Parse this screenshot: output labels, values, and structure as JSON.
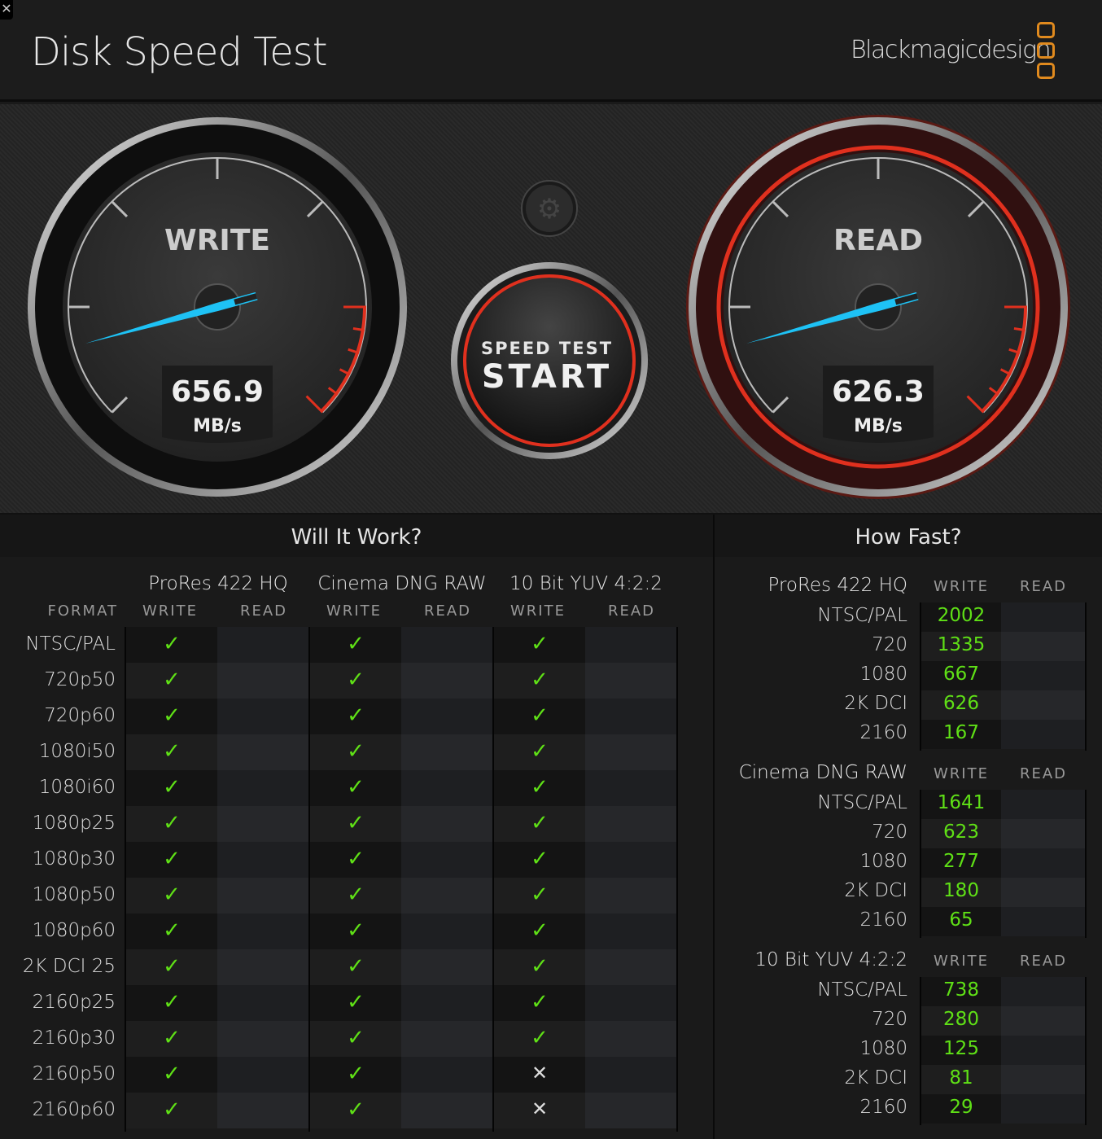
{
  "app": {
    "title": "Disk Speed Test",
    "brand": "Blackmagicdesign",
    "close_icon": "close-icon"
  },
  "colors": {
    "needle": "#1ec2f5",
    "red": "#e0301e",
    "check": "#5fe016",
    "logo": "#e08a1e"
  },
  "gauges": {
    "write": {
      "label": "WRITE",
      "value": "656.9",
      "unit": "MB/s"
    },
    "read": {
      "label": "READ",
      "value": "626.3",
      "unit": "MB/s"
    }
  },
  "start_button": {
    "line1": "SPEED TEST",
    "line2": "START"
  },
  "settings_icon": "gear-icon",
  "will_it_work": {
    "title": "Will It Work?",
    "format_label": "FORMAT",
    "groups": [
      "ProRes 422 HQ",
      "Cinema DNG RAW",
      "10 Bit YUV 4:2:2"
    ],
    "write_label": "WRITE",
    "read_label": "READ",
    "rows": [
      {
        "format": "NTSC/PAL",
        "w": [
          true,
          true,
          true
        ]
      },
      {
        "format": "720p50",
        "w": [
          true,
          true,
          true
        ]
      },
      {
        "format": "720p60",
        "w": [
          true,
          true,
          true
        ]
      },
      {
        "format": "1080i50",
        "w": [
          true,
          true,
          true
        ]
      },
      {
        "format": "1080i60",
        "w": [
          true,
          true,
          true
        ]
      },
      {
        "format": "1080p25",
        "w": [
          true,
          true,
          true
        ]
      },
      {
        "format": "1080p30",
        "w": [
          true,
          true,
          true
        ]
      },
      {
        "format": "1080p50",
        "w": [
          true,
          true,
          true
        ]
      },
      {
        "format": "1080p60",
        "w": [
          true,
          true,
          true
        ]
      },
      {
        "format": "2K DCI 25",
        "w": [
          true,
          true,
          true
        ]
      },
      {
        "format": "2160p25",
        "w": [
          true,
          true,
          true
        ]
      },
      {
        "format": "2160p30",
        "w": [
          true,
          true,
          true
        ]
      },
      {
        "format": "2160p50",
        "w": [
          true,
          true,
          false
        ]
      },
      {
        "format": "2160p60",
        "w": [
          true,
          true,
          false
        ]
      }
    ]
  },
  "how_fast": {
    "title": "How Fast?",
    "write_label": "WRITE",
    "read_label": "READ",
    "sections": [
      {
        "name": "ProRes 422 HQ",
        "rows": [
          {
            "f": "NTSC/PAL",
            "w": "2002"
          },
          {
            "f": "720",
            "w": "1335"
          },
          {
            "f": "1080",
            "w": "667"
          },
          {
            "f": "2K DCI",
            "w": "626"
          },
          {
            "f": "2160",
            "w": "167"
          }
        ]
      },
      {
        "name": "Cinema DNG RAW",
        "rows": [
          {
            "f": "NTSC/PAL",
            "w": "1641"
          },
          {
            "f": "720",
            "w": "623"
          },
          {
            "f": "1080",
            "w": "277"
          },
          {
            "f": "2K DCI",
            "w": "180"
          },
          {
            "f": "2160",
            "w": "65"
          }
        ]
      },
      {
        "name": "10 Bit YUV 4:2:2",
        "rows": [
          {
            "f": "NTSC/PAL",
            "w": "738"
          },
          {
            "f": "720",
            "w": "280"
          },
          {
            "f": "1080",
            "w": "125"
          },
          {
            "f": "2K DCI",
            "w": "81"
          },
          {
            "f": "2160",
            "w": "29"
          }
        ]
      }
    ]
  }
}
